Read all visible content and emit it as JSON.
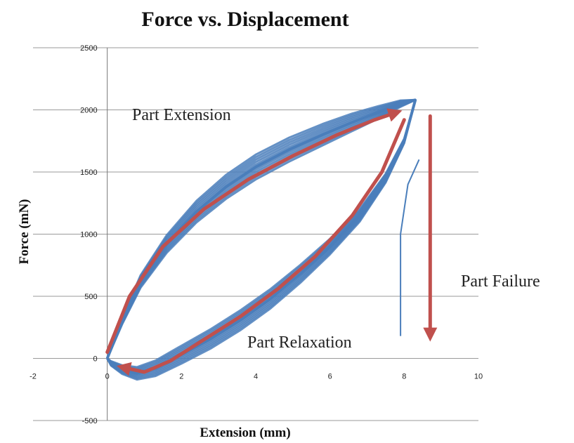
{
  "chart_data": {
    "type": "line",
    "title": "Force vs. Displacement",
    "xlabel": "Extension (mm)",
    "ylabel": "Force (mN)",
    "xlim": [
      -2,
      10
    ],
    "ylim": [
      -500,
      2500
    ],
    "x_ticks": [
      "-2",
      "0",
      "2",
      "4",
      "6",
      "8",
      "10"
    ],
    "y_ticks": [
      "2500",
      "2000",
      "1500",
      "1000",
      "500",
      "0",
      "-500"
    ],
    "grid": "horizontal",
    "series_color": "#4a7ebb",
    "arrow_color": "#c0504d",
    "series": [
      {
        "x": [
          0,
          0.4,
          0.9,
          1.6,
          2.4,
          3.2,
          4.0,
          4.9,
          5.8,
          6.6,
          7.3,
          7.9,
          8.3
        ],
        "y": [
          0,
          300,
          620,
          920,
          1180,
          1380,
          1540,
          1680,
          1800,
          1900,
          1980,
          2050,
          2080
        ]
      },
      {
        "x": [
          8.3,
          8.0,
          7.5,
          6.8,
          6.0,
          5.2,
          4.4,
          3.6,
          2.8,
          2.0,
          1.3,
          0.8,
          0.4,
          0.1,
          0
        ],
        "y": [
          2080,
          1750,
          1450,
          1150,
          900,
          680,
          480,
          310,
          160,
          30,
          -80,
          -120,
          -90,
          -40,
          0
        ]
      }
    ],
    "annotations": {
      "extension": "Part Extension",
      "failure": "Part Failure",
      "relaxation": "Part Relaxation"
    },
    "arrows": {
      "extension": {
        "x": [
          0,
          0.6,
          1.5,
          2.6,
          3.8,
          5.0,
          6.2,
          7.2,
          7.8
        ],
        "y": [
          50,
          500,
          900,
          1200,
          1440,
          1630,
          1800,
          1920,
          1980
        ]
      },
      "relaxation": {
        "x": [
          8.0,
          7.4,
          6.6,
          5.6,
          4.6,
          3.6,
          2.6,
          1.7,
          1.0,
          0.4
        ],
        "y": [
          1920,
          1500,
          1150,
          820,
          560,
          340,
          150,
          -20,
          -110,
          -70
        ]
      },
      "failure": {
        "x": [
          8.7,
          8.7
        ],
        "y": [
          1950,
          180
        ]
      }
    }
  }
}
